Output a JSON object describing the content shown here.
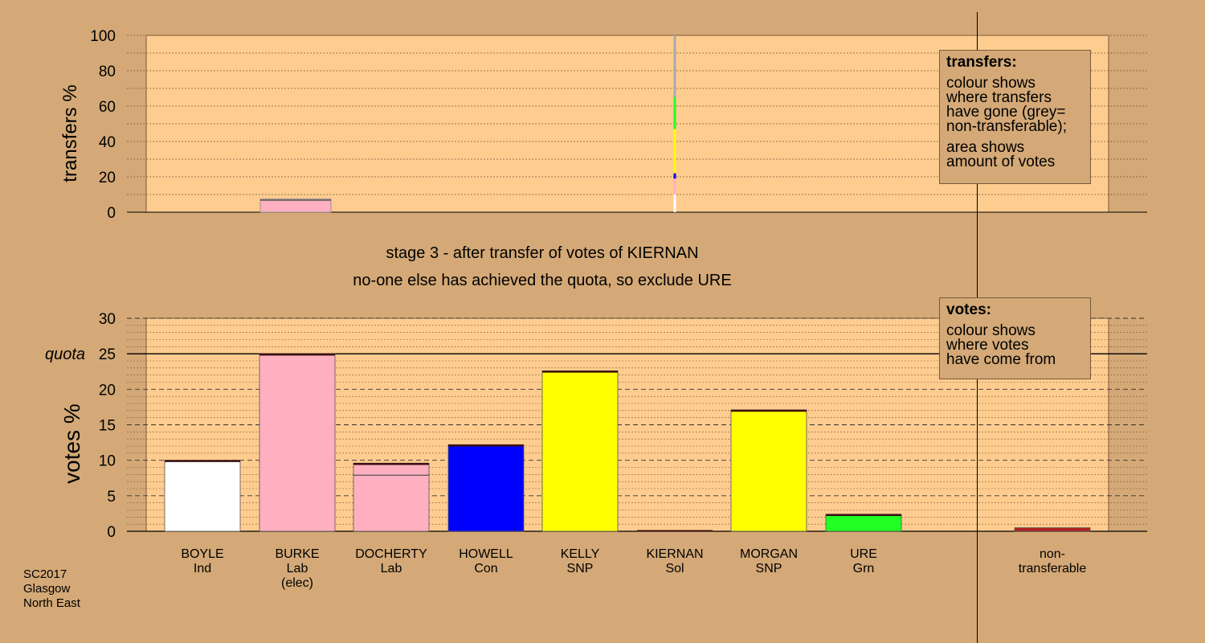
{
  "stage_caption": "stage 3 - after transfer of votes of KIERNAN",
  "exclude_caption": "no-one else has achieved the quota, so exclude URE",
  "legend_transfers": {
    "title": "transfers:",
    "lines1": [
      "colour shows",
      "where transfers",
      "have gone (grey=",
      "non-transferable);"
    ],
    "lines2": [
      "area shows",
      "amount of votes"
    ]
  },
  "legend_votes": {
    "title": "votes:",
    "lines": [
      "colour shows",
      "where votes",
      "have come from"
    ]
  },
  "source_note": [
    "SC2017",
    "Glasgow",
    "North East"
  ],
  "colors": {
    "background": "#d4a977",
    "plot_area": "#ffcc8f",
    "Ind": "#ffffff",
    "Lab": "#ffb0c0",
    "Con": "#0000ff",
    "SNP": "#ffff00",
    "Grn": "#22ff22",
    "Sol": "#8b0000",
    "non_transferable": "#aaaaaa",
    "non_transferable_bar": "#b22222"
  },
  "chart_data": [
    {
      "type": "bar",
      "name": "transfers",
      "ylabel": "transfers %",
      "ylim": [
        0,
        100
      ],
      "yticks": [
        0,
        20,
        40,
        60,
        80,
        100
      ],
      "grid": "dotted every 10",
      "categories": [
        "BOYLE",
        "BURKE",
        "DOCHERTY",
        "HOWELL",
        "KELLY",
        "KIERNAN",
        "MORGAN",
        "URE"
      ],
      "values": [
        0,
        7.5,
        0,
        0,
        0,
        0,
        0,
        0
      ],
      "kiernan_distribution": [
        {
          "to": "Ind",
          "value": 10
        },
        {
          "to": "Lab",
          "value": 9
        },
        {
          "to": "Con",
          "value": 3
        },
        {
          "to": "SNP",
          "value": 25
        },
        {
          "to": "Grn",
          "value": 18
        },
        {
          "to": "non_transferable",
          "value": 35
        }
      ]
    },
    {
      "type": "bar",
      "name": "votes",
      "ylabel": "votes %",
      "ylim": [
        0,
        30
      ],
      "yticks": [
        0,
        5,
        10,
        15,
        20,
        25,
        30
      ],
      "quota": 25,
      "quota_label": "quota",
      "grid": "dashed every 5, dotted every 1",
      "categories": [
        "BOYLE",
        "BURKE",
        "DOCHERTY",
        "HOWELL",
        "KELLY",
        "KIERNAN",
        "MORGAN",
        "URE",
        "non-transferable"
      ],
      "category_lines": [
        [
          "BOYLE",
          "Ind"
        ],
        [
          "BURKE",
          "Lab",
          "(elec)"
        ],
        [
          "DOCHERTY",
          "Lab"
        ],
        [
          "HOWELL",
          "Con"
        ],
        [
          "KELLY",
          "SNP"
        ],
        [
          "KIERNAN",
          "Sol"
        ],
        [
          "MORGAN",
          "SNP"
        ],
        [
          "URE",
          "Grn"
        ],
        [
          "non-",
          "transferable"
        ]
      ],
      "series": [
        {
          "party": "Ind",
          "values": [
            10.0,
            0,
            0,
            0,
            0,
            0,
            0,
            0,
            0
          ]
        },
        {
          "party": "Lab",
          "values": [
            0,
            25.0,
            9.6,
            0,
            0,
            0,
            0,
            0,
            0
          ]
        },
        {
          "party": "Con",
          "values": [
            0,
            0,
            0,
            12.2,
            0,
            0,
            0,
            0,
            0
          ]
        },
        {
          "party": "SNP",
          "values": [
            0,
            0,
            0,
            0,
            22.6,
            0,
            17.1,
            0,
            0
          ]
        },
        {
          "party": "Grn",
          "values": [
            0,
            0,
            0,
            0,
            0,
            0,
            0,
            2.4,
            0
          ]
        },
        {
          "party": "non_transferable_bar",
          "values": [
            0,
            0,
            0,
            0,
            0,
            0,
            0,
            0,
            0.5
          ]
        }
      ],
      "docherty_inner_line": 7.9,
      "transfer_increment_cap": 0.2
    }
  ]
}
